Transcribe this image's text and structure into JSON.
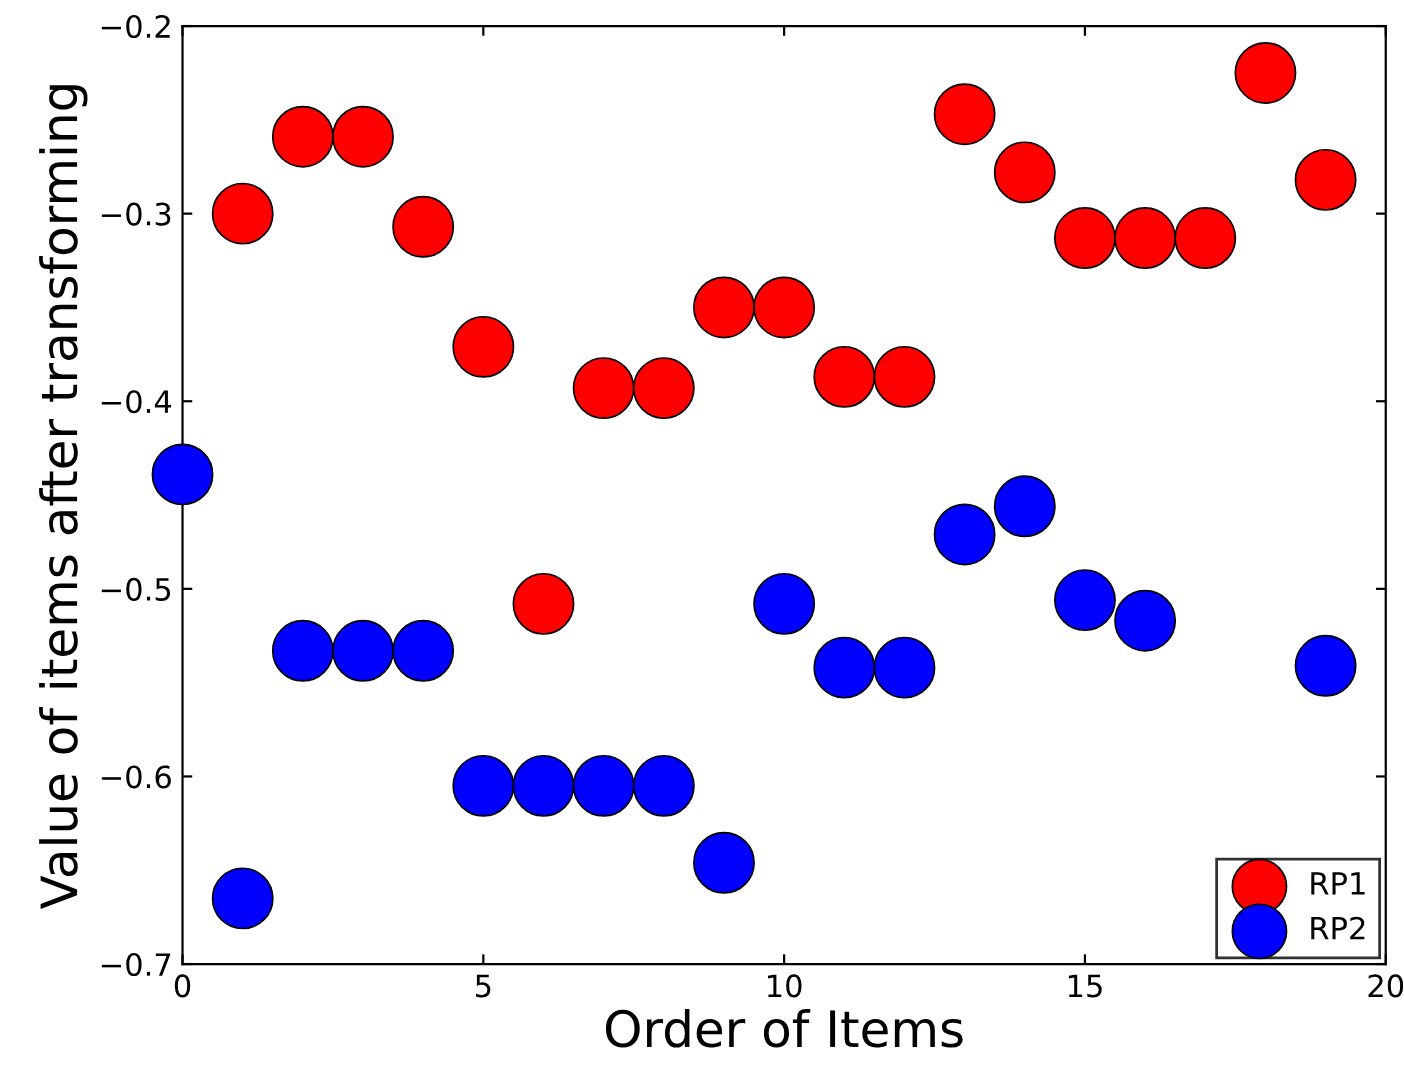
{
  "chart_data": {
    "type": "scatter",
    "xlabel": "Order of Items",
    "ylabel": "Value of items after transforming",
    "x": [
      0,
      1,
      2,
      3,
      4,
      5,
      6,
      7,
      8,
      9,
      10,
      11,
      12,
      13,
      14,
      15,
      16,
      17,
      18,
      19
    ],
    "series": [
      {
        "name": "RP1",
        "color": "#ff0000",
        "values": [
          null,
          -0.3,
          -0.259,
          -0.259,
          -0.307,
          -0.371,
          -0.508,
          -0.393,
          -0.393,
          -0.35,
          -0.35,
          -0.387,
          -0.387,
          -0.247,
          -0.278,
          -0.313,
          -0.313,
          -0.313,
          -0.225,
          -0.282
        ]
      },
      {
        "name": "RP2",
        "color": "#0000ff",
        "values": [
          -0.439,
          -0.665,
          -0.533,
          -0.533,
          -0.533,
          -0.605,
          -0.605,
          -0.605,
          -0.605,
          -0.646,
          -0.508,
          -0.542,
          -0.542,
          -0.471,
          -0.456,
          -0.506,
          -0.517,
          null,
          null,
          -0.541
        ]
      }
    ],
    "xlim": [
      0,
      20
    ],
    "xticks": [
      0,
      5,
      10,
      15,
      20
    ],
    "ylim": [
      -0.7,
      -0.2
    ],
    "yticks": [
      {
        "value": -0.7,
        "label": "−0.7"
      },
      {
        "value": -0.6,
        "label": "−0.6"
      },
      {
        "value": -0.5,
        "label": "−0.5"
      },
      {
        "value": -0.4,
        "label": "−0.4"
      },
      {
        "value": -0.3,
        "label": "−0.3"
      },
      {
        "value": -0.2,
        "label": "−0.2"
      }
    ],
    "grid": false,
    "legend": "lower right",
    "marker": "circle"
  }
}
